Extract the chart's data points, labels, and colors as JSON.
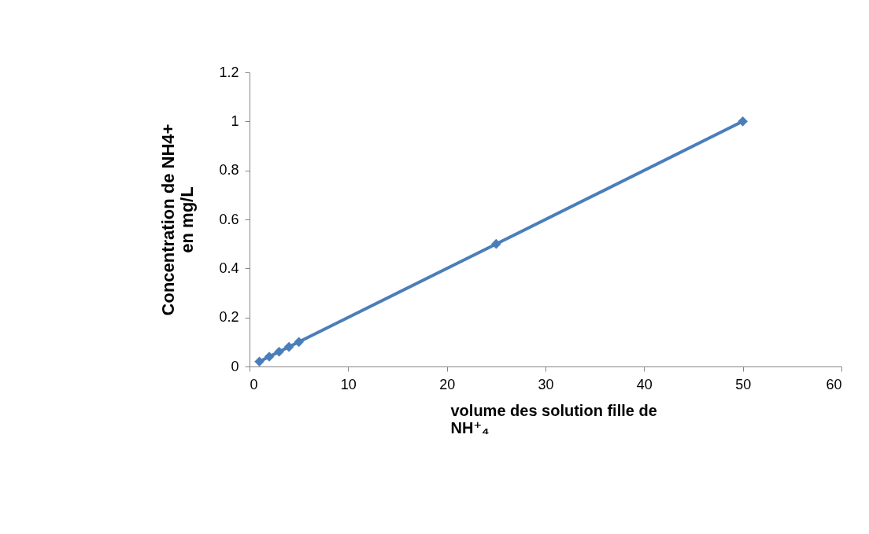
{
  "chart_data": {
    "type": "line",
    "xlabel": "volume des solution fille de NH⁺₄",
    "ylabel": "Concentration de NH4+ en mg/L",
    "x": [
      1,
      2,
      3,
      4,
      5,
      25,
      50
    ],
    "series": [
      {
        "color": "#4a7ebb",
        "values": [
          0.02,
          0.04,
          0.06,
          0.08,
          0.1,
          0.5,
          1
        ]
      }
    ],
    "xlim": [
      0,
      60
    ],
    "xticks": [
      0,
      10,
      20,
      30,
      40,
      50,
      60
    ],
    "ylim": [
      0,
      1.2
    ],
    "yticks": [
      0,
      0.2,
      0.4,
      0.6,
      0.8,
      1,
      1.2
    ],
    "grid": false,
    "marker": "diamond",
    "line_style": "solid"
  }
}
